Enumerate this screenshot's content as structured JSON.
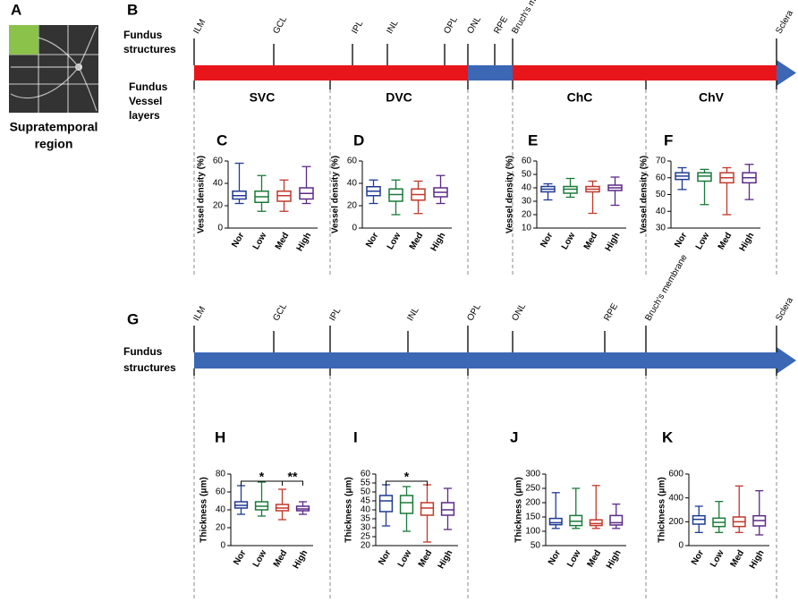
{
  "figure": {
    "panels": [
      "A",
      "B",
      "C",
      "D",
      "E",
      "F",
      "G",
      "H",
      "I",
      "J",
      "K"
    ],
    "region_label": [
      "Supratemporal",
      "region"
    ],
    "structures_label": [
      "Fundus",
      "structures"
    ],
    "vessel_label": [
      "Fundus",
      "Vessel",
      "layers"
    ],
    "top_structures": [
      "ILM",
      "GCL",
      "IPL",
      "INL",
      "OPL",
      "ONL",
      "RPE",
      "Bruch's membrane",
      "Sclera"
    ],
    "vessel_layers": [
      "SVC",
      "DVC",
      "ChC",
      "ChV"
    ],
    "bottom_structures": [
      "ILM",
      "GCL",
      "IPL",
      "INL",
      "OPL",
      "ONL",
      "RPE",
      "Bruch's membrane",
      "Sclera"
    ]
  },
  "chart_data": [
    {
      "type": "box",
      "ylabel": "Vessel density (%)",
      "categories": [
        "Nor",
        "Low",
        "Med",
        "High"
      ],
      "colors": [
        "#1f3a93",
        "#1a7a3a",
        "#c0392b",
        "#5b2a86"
      ],
      "ylim": [
        0,
        60
      ],
      "yticks": [
        0,
        20,
        40,
        60
      ],
      "boxes": [
        {
          "min": 22,
          "q1": 26,
          "median": 29,
          "q3": 33,
          "max": 58
        },
        {
          "min": 15,
          "q1": 23,
          "median": 28,
          "q3": 33,
          "max": 47
        },
        {
          "min": 15,
          "q1": 24,
          "median": 29,
          "q3": 33,
          "max": 43
        },
        {
          "min": 22,
          "q1": 26,
          "median": 31,
          "q3": 36,
          "max": 55
        }
      ]
    },
    {
      "type": "box",
      "ylabel": "Vessel density (%)",
      "categories": [
        "Nor",
        "Low",
        "Med",
        "High"
      ],
      "colors": [
        "#1f3a93",
        "#1a7a3a",
        "#c0392b",
        "#5b2a86"
      ],
      "ylim": [
        0,
        60
      ],
      "yticks": [
        0,
        20,
        40,
        60
      ],
      "boxes": [
        {
          "min": 22,
          "q1": 29,
          "median": 33,
          "q3": 37,
          "max": 43
        },
        {
          "min": 12,
          "q1": 24,
          "median": 30,
          "q3": 35,
          "max": 43
        },
        {
          "min": 13,
          "q1": 25,
          "median": 30,
          "q3": 35,
          "max": 42
        },
        {
          "min": 22,
          "q1": 28,
          "median": 32,
          "q3": 36,
          "max": 47
        }
      ]
    },
    {
      "type": "box",
      "ylabel": "Vessel density (%)",
      "categories": [
        "Nor",
        "Low",
        "Med",
        "High"
      ],
      "colors": [
        "#1f3a93",
        "#1a7a3a",
        "#c0392b",
        "#5b2a86"
      ],
      "ylim": [
        10,
        60
      ],
      "yticks": [
        10,
        20,
        30,
        40,
        50,
        60
      ],
      "boxes": [
        {
          "min": 31,
          "q1": 37,
          "median": 39,
          "q3": 41,
          "max": 43
        },
        {
          "min": 33,
          "q1": 36,
          "median": 39,
          "q3": 41,
          "max": 47
        },
        {
          "min": 21,
          "q1": 37,
          "median": 39,
          "q3": 41,
          "max": 45
        },
        {
          "min": 27,
          "q1": 38,
          "median": 40,
          "q3": 42,
          "max": 48
        }
      ]
    },
    {
      "type": "box",
      "ylabel": "Vessel density (%)",
      "categories": [
        "Nor",
        "Low",
        "Med",
        "High"
      ],
      "colors": [
        "#1f3a93",
        "#1a7a3a",
        "#c0392b",
        "#5b2a86"
      ],
      "ylim": [
        30,
        70
      ],
      "yticks": [
        30,
        40,
        50,
        60,
        70
      ],
      "boxes": [
        {
          "min": 53,
          "q1": 59,
          "median": 61,
          "q3": 63,
          "max": 66
        },
        {
          "min": 44,
          "q1": 58,
          "median": 61,
          "q3": 63,
          "max": 65
        },
        {
          "min": 38,
          "q1": 57,
          "median": 60,
          "q3": 63,
          "max": 66
        },
        {
          "min": 47,
          "q1": 57,
          "median": 60,
          "q3": 63,
          "max": 68
        }
      ]
    },
    {
      "type": "box",
      "ylabel": "Thickness (μm)",
      "categories": [
        "Nor",
        "Low",
        "Med",
        "High"
      ],
      "colors": [
        "#1f3a93",
        "#1a7a3a",
        "#c0392b",
        "#5b2a86"
      ],
      "ylim": [
        0,
        80
      ],
      "yticks": [
        0,
        20,
        40,
        60,
        80
      ],
      "boxes": [
        {
          "min": 35,
          "q1": 42,
          "median": 45,
          "q3": 49,
          "max": 67
        },
        {
          "min": 33,
          "q1": 40,
          "median": 44,
          "q3": 49,
          "max": 71
        },
        {
          "min": 29,
          "q1": 39,
          "median": 42,
          "q3": 46,
          "max": 63
        },
        {
          "min": 35,
          "q1": 39,
          "median": 41,
          "q3": 44,
          "max": 49
        }
      ],
      "significance": [
        {
          "text": "*",
          "groups": [
            0,
            2
          ]
        },
        {
          "text": "**",
          "groups": [
            2,
            3
          ]
        }
      ]
    },
    {
      "type": "box",
      "ylabel": "Thickness (μm)",
      "categories": [
        "Nor",
        "Low",
        "Med",
        "High"
      ],
      "colors": [
        "#1f3a93",
        "#1a7a3a",
        "#c0392b",
        "#5b2a86"
      ],
      "ylim": [
        20,
        60
      ],
      "yticks": [
        20,
        25,
        30,
        35,
        40,
        45,
        50,
        55,
        60
      ],
      "boxes": [
        {
          "min": 31,
          "q1": 39,
          "median": 45,
          "q3": 48,
          "max": 54
        },
        {
          "min": 28,
          "q1": 38,
          "median": 44,
          "q3": 48,
          "max": 53
        },
        {
          "min": 22,
          "q1": 37,
          "median": 41,
          "q3": 44,
          "max": 54
        },
        {
          "min": 29,
          "q1": 37,
          "median": 40,
          "q3": 44,
          "max": 52
        }
      ],
      "significance": [
        {
          "text": "*",
          "groups": [
            0,
            2
          ]
        }
      ]
    },
    {
      "type": "box",
      "ylabel": "Thickness (μm)",
      "categories": [
        "Nor",
        "Low",
        "Med",
        "High"
      ],
      "colors": [
        "#1f3a93",
        "#1a7a3a",
        "#c0392b",
        "#5b2a86"
      ],
      "ylim": [
        50,
        300
      ],
      "yticks": [
        50,
        100,
        150,
        200,
        250,
        300
      ],
      "boxes": [
        {
          "min": 110,
          "q1": 123,
          "median": 130,
          "q3": 145,
          "max": 235
        },
        {
          "min": 110,
          "q1": 120,
          "median": 135,
          "q3": 155,
          "max": 250
        },
        {
          "min": 110,
          "q1": 120,
          "median": 127,
          "q3": 140,
          "max": 260
        },
        {
          "min": 110,
          "q1": 122,
          "median": 130,
          "q3": 155,
          "max": 195
        }
      ]
    },
    {
      "type": "box",
      "ylabel": "Thickness (μm)",
      "categories": [
        "Nor",
        "Low",
        "Med",
        "High"
      ],
      "colors": [
        "#1f3a93",
        "#1a7a3a",
        "#c0392b",
        "#5b2a86"
      ],
      "ylim": [
        0,
        600
      ],
      "yticks": [
        0,
        200,
        400,
        600
      ],
      "boxes": [
        {
          "min": 110,
          "q1": 180,
          "median": 220,
          "q3": 250,
          "max": 330
        },
        {
          "min": 110,
          "q1": 160,
          "median": 195,
          "q3": 230,
          "max": 370
        },
        {
          "min": 110,
          "q1": 160,
          "median": 200,
          "q3": 240,
          "max": 500
        },
        {
          "min": 90,
          "q1": 165,
          "median": 210,
          "q3": 250,
          "max": 460
        }
      ]
    }
  ]
}
